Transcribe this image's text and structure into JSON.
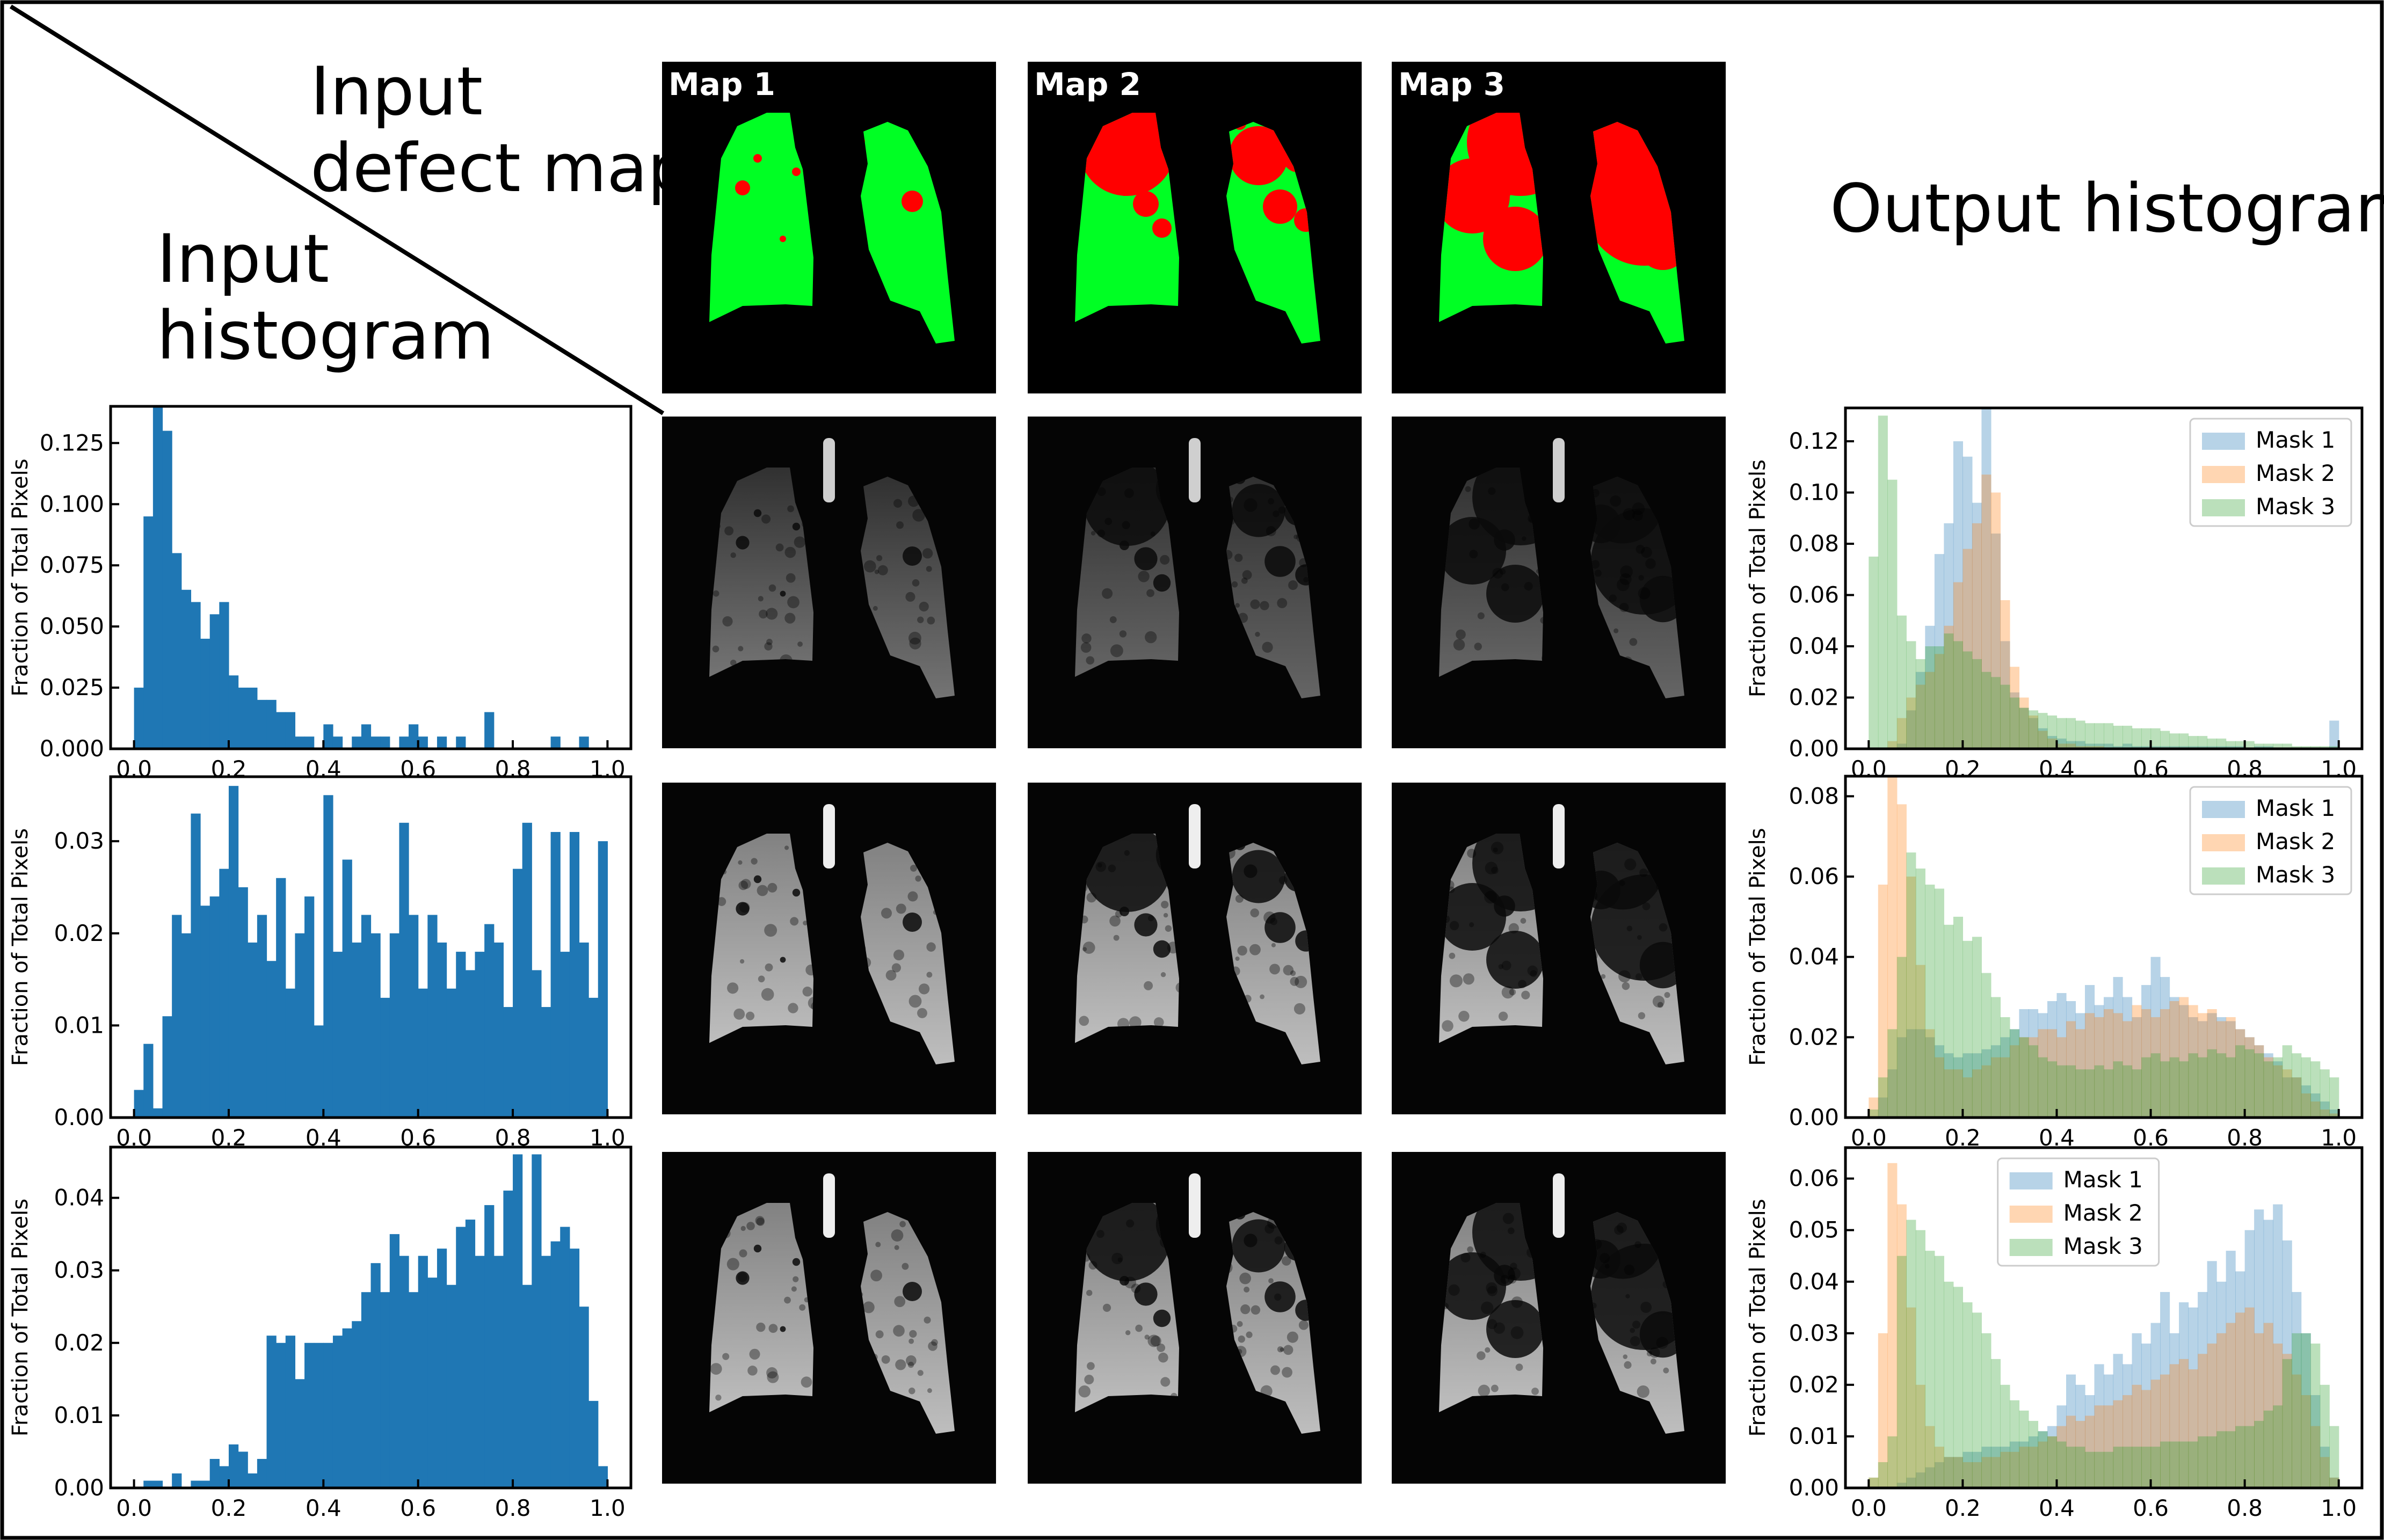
{
  "figure": {
    "corner_labels": {
      "top": "Input\ndefect map",
      "bottom": "Input\nhistogram"
    },
    "output_title": "Output histogram",
    "map_titles": [
      "Map 1",
      "Map 2",
      "Map 3"
    ],
    "colors": {
      "lung": "#00ff24",
      "defect": "#ff0000",
      "input_bar": "#1f77b4",
      "mask1": "#a6c8e0",
      "mask2": "#f9c9a0",
      "mask3": "#a8d8a8"
    }
  },
  "chart_data": [
    {
      "id": "input-hist-1",
      "type": "bar",
      "ylabel": "Fraction of Total Pixels",
      "xlim": [
        0,
        1
      ],
      "ylim": [
        0,
        0.14
      ],
      "yticks": [
        "0.000",
        "0.025",
        "0.050",
        "0.075",
        "0.100",
        "0.125"
      ],
      "xticks": [
        "0.0",
        "0.2",
        "0.4",
        "0.6",
        "0.8",
        "1.0"
      ],
      "bin_edges_start": 0.0,
      "bin_width": 0.02,
      "values": [
        0.025,
        0.095,
        0.14,
        0.13,
        0.08,
        0.065,
        0.06,
        0.045,
        0.055,
        0.06,
        0.03,
        0.025,
        0.025,
        0.02,
        0.02,
        0.015,
        0.015,
        0.005,
        0.005,
        0.0,
        0.01,
        0.005,
        0.0,
        0.005,
        0.01,
        0.005,
        0.005,
        0.0,
        0.005,
        0.01,
        0.005,
        0.0,
        0.005,
        0.0,
        0.005,
        0.0,
        0.0,
        0.015,
        0.0,
        0.0,
        0.0,
        0.0,
        0.0,
        0.0,
        0.005,
        0.0,
        0.0,
        0.005,
        0.0,
        0.0
      ]
    },
    {
      "id": "input-hist-2",
      "type": "bar",
      "ylabel": "Fraction of Total Pixels",
      "xlim": [
        0,
        1
      ],
      "ylim": [
        0,
        0.037
      ],
      "yticks": [
        "0.00",
        "0.01",
        "0.02",
        "0.03"
      ],
      "xticks": [
        "0.0",
        "0.2",
        "0.4",
        "0.6",
        "0.8",
        "1.0"
      ],
      "bin_edges_start": 0.0,
      "bin_width": 0.02,
      "values": [
        0.003,
        0.008,
        0.001,
        0.011,
        0.022,
        0.02,
        0.033,
        0.023,
        0.024,
        0.027,
        0.036,
        0.025,
        0.019,
        0.022,
        0.017,
        0.026,
        0.014,
        0.02,
        0.024,
        0.01,
        0.035,
        0.018,
        0.028,
        0.019,
        0.022,
        0.02,
        0.013,
        0.02,
        0.032,
        0.022,
        0.014,
        0.022,
        0.019,
        0.014,
        0.018,
        0.016,
        0.018,
        0.021,
        0.019,
        0.012,
        0.027,
        0.032,
        0.016,
        0.012,
        0.031,
        0.018,
        0.031,
        0.019,
        0.013,
        0.03
      ]
    },
    {
      "id": "input-hist-3",
      "type": "bar",
      "ylabel": "Fraction of Total Pixels",
      "xlim": [
        0,
        1
      ],
      "ylim": [
        0,
        0.047
      ],
      "yticks": [
        "0.00",
        "0.01",
        "0.02",
        "0.03",
        "0.04"
      ],
      "xticks": [
        "0.0",
        "0.2",
        "0.4",
        "0.6",
        "0.8",
        "1.0"
      ],
      "bin_edges_start": 0.0,
      "bin_width": 0.02,
      "values": [
        0.0,
        0.001,
        0.001,
        0.0,
        0.002,
        0.0,
        0.001,
        0.001,
        0.004,
        0.003,
        0.006,
        0.005,
        0.002,
        0.004,
        0.021,
        0.02,
        0.021,
        0.015,
        0.02,
        0.02,
        0.02,
        0.021,
        0.022,
        0.023,
        0.027,
        0.031,
        0.027,
        0.035,
        0.032,
        0.027,
        0.032,
        0.029,
        0.033,
        0.028,
        0.036,
        0.037,
        0.032,
        0.039,
        0.032,
        0.041,
        0.046,
        0.028,
        0.046,
        0.032,
        0.034,
        0.036,
        0.033,
        0.025,
        0.012,
        0.003
      ]
    },
    {
      "id": "output-hist-1",
      "type": "bar",
      "ylabel": "Fraction of Total Pixels",
      "xlim": [
        0,
        1
      ],
      "ylim": [
        0,
        0.133
      ],
      "yticks": [
        "0.00",
        "0.02",
        "0.04",
        "0.06",
        "0.08",
        "0.10",
        "0.12"
      ],
      "xticks": [
        "0.0",
        "0.2",
        "0.4",
        "0.6",
        "0.8",
        "1.0"
      ],
      "legend_position": "top-right",
      "bin_edges_start": 0.0,
      "bin_width": 0.02,
      "series": [
        {
          "name": "Mask 1",
          "values": [
            0.0,
            0.0,
            0.0,
            0.002,
            0.015,
            0.03,
            0.048,
            0.076,
            0.088,
            0.12,
            0.114,
            0.096,
            0.134,
            0.084,
            0.042,
            0.022,
            0.016,
            0.012,
            0.008,
            0.005,
            0.004,
            0.003,
            0.003,
            0.002,
            0.002,
            0.002,
            0.001,
            0.002,
            0.001,
            0.001,
            0.001,
            0.001,
            0.001,
            0.001,
            0.001,
            0.001,
            0.001,
            0.001,
            0.001,
            0.001,
            0.0,
            0.001,
            0.001,
            0.0,
            0.0,
            0.0,
            0.0,
            0.0,
            0.0,
            0.011
          ]
        },
        {
          "name": "Mask 2",
          "values": [
            0.0,
            0.0,
            0.003,
            0.012,
            0.02,
            0.025,
            0.03,
            0.037,
            0.048,
            0.065,
            0.078,
            0.088,
            0.107,
            0.1,
            0.058,
            0.032,
            0.02,
            0.013,
            0.007,
            0.004,
            0.002,
            0.002,
            0.001,
            0.001,
            0.001,
            0.0,
            0.0,
            0.0,
            0.0,
            0.0,
            0.0,
            0.0,
            0.0,
            0.0,
            0.0,
            0.0,
            0.0,
            0.0,
            0.0,
            0.0,
            0.0,
            0.0,
            0.0,
            0.0,
            0.0,
            0.0,
            0.0,
            0.0,
            0.0,
            0.0
          ]
        },
        {
          "name": "Mask 3",
          "values": [
            0.075,
            0.13,
            0.105,
            0.052,
            0.042,
            0.035,
            0.04,
            0.04,
            0.045,
            0.042,
            0.038,
            0.035,
            0.03,
            0.028,
            0.025,
            0.02,
            0.016,
            0.015,
            0.014,
            0.013,
            0.012,
            0.012,
            0.011,
            0.01,
            0.01,
            0.01,
            0.009,
            0.009,
            0.008,
            0.008,
            0.008,
            0.007,
            0.006,
            0.006,
            0.005,
            0.005,
            0.004,
            0.004,
            0.003,
            0.003,
            0.003,
            0.002,
            0.002,
            0.002,
            0.002,
            0.001,
            0.001,
            0.001,
            0.001,
            0.001
          ]
        }
      ]
    },
    {
      "id": "output-hist-2",
      "type": "bar",
      "ylabel": "Fraction of Total Pixels",
      "xlim": [
        0,
        1
      ],
      "ylim": [
        0,
        0.085
      ],
      "yticks": [
        "0.00",
        "0.02",
        "0.04",
        "0.06",
        "0.08"
      ],
      "xticks": [
        "0.0",
        "0.2",
        "0.4",
        "0.6",
        "0.8",
        "1.0"
      ],
      "legend_position": "top-right",
      "bin_edges_start": 0.0,
      "bin_width": 0.02,
      "series": [
        {
          "name": "Mask 1",
          "values": [
            0.0,
            0.005,
            0.012,
            0.02,
            0.022,
            0.022,
            0.02,
            0.018,
            0.016,
            0.015,
            0.016,
            0.016,
            0.017,
            0.018,
            0.02,
            0.022,
            0.027,
            0.027,
            0.026,
            0.029,
            0.031,
            0.029,
            0.026,
            0.033,
            0.028,
            0.03,
            0.035,
            0.03,
            0.025,
            0.033,
            0.04,
            0.035,
            0.03,
            0.028,
            0.025,
            0.024,
            0.026,
            0.025,
            0.024,
            0.022,
            0.02,
            0.018,
            0.016,
            0.014,
            0.01,
            0.01,
            0.008,
            0.006,
            0.004,
            0.002
          ]
        },
        {
          "name": "Mask 2",
          "values": [
            0.005,
            0.058,
            0.085,
            0.078,
            0.06,
            0.038,
            0.022,
            0.015,
            0.012,
            0.012,
            0.01,
            0.012,
            0.013,
            0.015,
            0.015,
            0.018,
            0.02,
            0.02,
            0.022,
            0.022,
            0.02,
            0.024,
            0.022,
            0.026,
            0.025,
            0.027,
            0.026,
            0.024,
            0.028,
            0.027,
            0.025,
            0.027,
            0.029,
            0.03,
            0.028,
            0.026,
            0.027,
            0.024,
            0.025,
            0.022,
            0.02,
            0.018,
            0.015,
            0.013,
            0.012,
            0.01,
            0.006,
            0.004,
            0.002,
            0.001
          ]
        },
        {
          "name": "Mask 3",
          "values": [
            0.002,
            0.01,
            0.022,
            0.04,
            0.066,
            0.062,
            0.058,
            0.057,
            0.048,
            0.05,
            0.044,
            0.045,
            0.036,
            0.03,
            0.025,
            0.022,
            0.02,
            0.018,
            0.015,
            0.014,
            0.013,
            0.013,
            0.012,
            0.012,
            0.013,
            0.012,
            0.014,
            0.013,
            0.012,
            0.015,
            0.016,
            0.014,
            0.015,
            0.014,
            0.016,
            0.015,
            0.017,
            0.016,
            0.015,
            0.018,
            0.017,
            0.016,
            0.014,
            0.015,
            0.018,
            0.016,
            0.015,
            0.014,
            0.012,
            0.01
          ]
        }
      ]
    },
    {
      "id": "output-hist-3",
      "type": "bar",
      "ylabel": "Fraction of Total Pixels",
      "xlim": [
        0,
        1
      ],
      "ylim": [
        0,
        0.066
      ],
      "yticks": [
        "0.00",
        "0.01",
        "0.02",
        "0.03",
        "0.04",
        "0.05",
        "0.06"
      ],
      "xticks": [
        "0.0",
        "0.2",
        "0.4",
        "0.6",
        "0.8",
        "1.0"
      ],
      "legend_position": "top-center",
      "bin_edges_start": 0.0,
      "bin_width": 0.02,
      "series": [
        {
          "name": "Mask 1",
          "values": [
            0.0,
            0.0,
            0.0,
            0.001,
            0.002,
            0.003,
            0.004,
            0.005,
            0.006,
            0.006,
            0.007,
            0.007,
            0.008,
            0.008,
            0.008,
            0.009,
            0.009,
            0.01,
            0.011,
            0.012,
            0.016,
            0.022,
            0.02,
            0.018,
            0.024,
            0.022,
            0.026,
            0.024,
            0.03,
            0.028,
            0.032,
            0.038,
            0.03,
            0.036,
            0.035,
            0.038,
            0.044,
            0.04,
            0.046,
            0.042,
            0.05,
            0.054,
            0.052,
            0.055,
            0.048,
            0.038,
            0.03,
            0.018,
            0.008,
            0.002
          ]
        },
        {
          "name": "Mask 2",
          "values": [
            0.002,
            0.03,
            0.063,
            0.055,
            0.035,
            0.02,
            0.012,
            0.008,
            0.006,
            0.006,
            0.005,
            0.005,
            0.006,
            0.006,
            0.007,
            0.007,
            0.008,
            0.008,
            0.009,
            0.01,
            0.012,
            0.014,
            0.013,
            0.014,
            0.016,
            0.016,
            0.017,
            0.018,
            0.02,
            0.019,
            0.021,
            0.022,
            0.024,
            0.025,
            0.023,
            0.026,
            0.028,
            0.03,
            0.032,
            0.034,
            0.035,
            0.03,
            0.032,
            0.028,
            0.026,
            0.022,
            0.018,
            0.012,
            0.006,
            0.002
          ]
        },
        {
          "name": "Mask 3",
          "values": [
            0.002,
            0.005,
            0.01,
            0.045,
            0.052,
            0.05,
            0.046,
            0.045,
            0.04,
            0.039,
            0.036,
            0.034,
            0.03,
            0.025,
            0.02,
            0.017,
            0.015,
            0.013,
            0.011,
            0.01,
            0.009,
            0.008,
            0.008,
            0.007,
            0.007,
            0.007,
            0.008,
            0.008,
            0.008,
            0.008,
            0.008,
            0.009,
            0.009,
            0.009,
            0.009,
            0.01,
            0.01,
            0.011,
            0.011,
            0.012,
            0.012,
            0.013,
            0.015,
            0.016,
            0.025,
            0.03,
            0.03,
            0.028,
            0.02,
            0.012
          ]
        }
      ]
    }
  ]
}
